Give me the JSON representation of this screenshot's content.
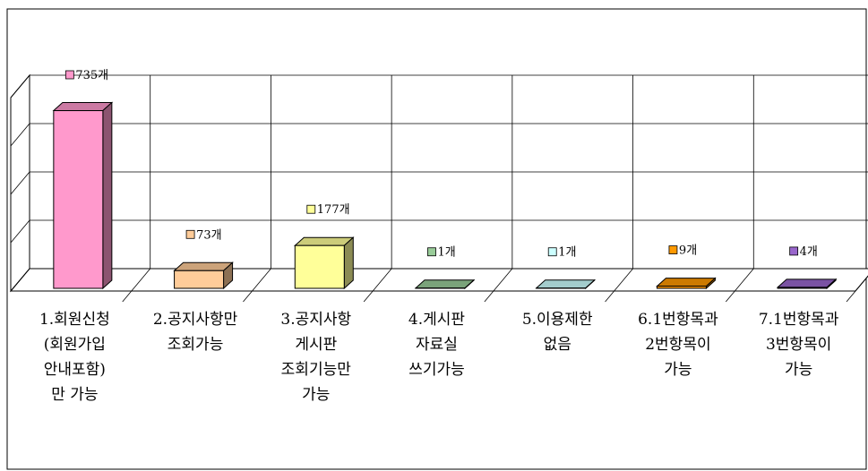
{
  "chart_data": {
    "type": "bar3d",
    "categories": [
      "1.회원신청\n(회원가입\n안내포함)\n만 가능",
      "2.공지사항만\n조회가능",
      "3.공지사항\n게시판\n조회기능만\n가능",
      "4.게시판\n자료실\n쓰기가능",
      "5.이용제한\n없음",
      "6.1번항목과\n2번항목이\n가능",
      "7.1번항목과\n3번항목이\n가능"
    ],
    "values": [
      735,
      73,
      177,
      1,
      1,
      9,
      4
    ],
    "value_labels": [
      "735개",
      "73개",
      "177개",
      "1개",
      "1개",
      "9개",
      "4개"
    ],
    "colors": [
      "#ff99cc",
      "#ffcc99",
      "#ffff99",
      "#99cc99",
      "#ccffff",
      "#ff9900",
      "#9966cc"
    ],
    "ylim": [
      0,
      800
    ],
    "yticks": [
      0,
      200,
      400,
      600,
      800
    ],
    "grid": true
  }
}
